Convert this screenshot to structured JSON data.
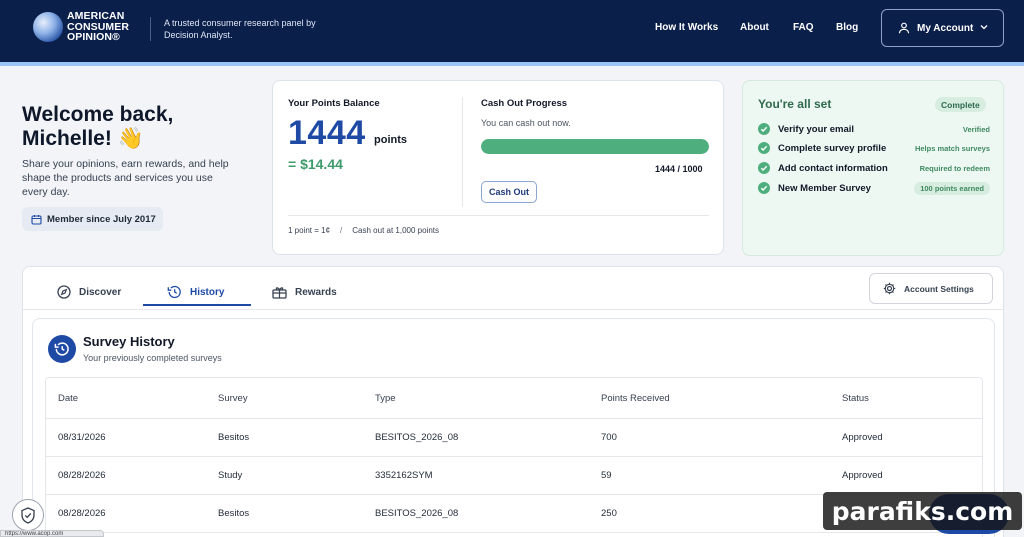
{
  "header": {
    "logo_lines": [
      "AMERICAN",
      "CONSUMER",
      "OPINION®"
    ],
    "tagline_lines": [
      "A trusted consumer research panel by",
      "Decision Analyst."
    ],
    "nav": [
      "How It Works",
      "About",
      "FAQ",
      "Blog"
    ],
    "account_label": "My Account"
  },
  "welcome": {
    "title_line1": "Welcome back,",
    "title_line2": "Michelle! 👋",
    "subtitle": "Share your opinions, earn rewards, and help shape the products and services you use every day.",
    "member_since": "Member since July 2017"
  },
  "points": {
    "label": "Your Points Balance",
    "balance": "1444",
    "unit": "points",
    "dollars": "= $14.44",
    "cashout_label": "Cash Out Progress",
    "cashout_sub": "You can cash out now.",
    "progress_fraction": 1.0,
    "progress_text": "1444 / 1000",
    "cashout_button": "Cash Out",
    "foot_rate": "1 point = 1¢",
    "foot_sep": "/",
    "foot_min": "Cash out at 1,000 points"
  },
  "checklist": {
    "title": "You're all set",
    "badge": "Complete",
    "items": [
      {
        "label": "Verify your email",
        "note": "Verified"
      },
      {
        "label": "Complete survey profile",
        "note": "Helps match surveys"
      },
      {
        "label": "Add contact information",
        "note": "Required to redeem"
      },
      {
        "label": "New Member Survey",
        "note": "100 points earned"
      }
    ]
  },
  "tabs": {
    "items": [
      "Discover",
      "History",
      "Rewards"
    ],
    "active": "History",
    "settings_label": "Account Settings"
  },
  "history": {
    "title": "Survey History",
    "subtitle": "Your previously completed surveys",
    "columns": [
      "Date",
      "Survey",
      "Type",
      "Points Received",
      "Status"
    ],
    "rows": [
      [
        "08/31/2026",
        "Besitos",
        "BESITOS_2026_08",
        "700",
        "Approved"
      ],
      [
        "08/28/2026",
        "Study",
        "3352162SYM",
        "59",
        "Approved"
      ],
      [
        "08/28/2026",
        "Besitos",
        "BESITOS_2026_08",
        "250",
        ""
      ]
    ]
  },
  "status_url": "https://www.acop.com",
  "watermark": "parafiks.com",
  "colors": {
    "header_bg": "#0b1f4b",
    "accent_blue": "#1e4aa6",
    "success_green": "#4fae7e"
  }
}
